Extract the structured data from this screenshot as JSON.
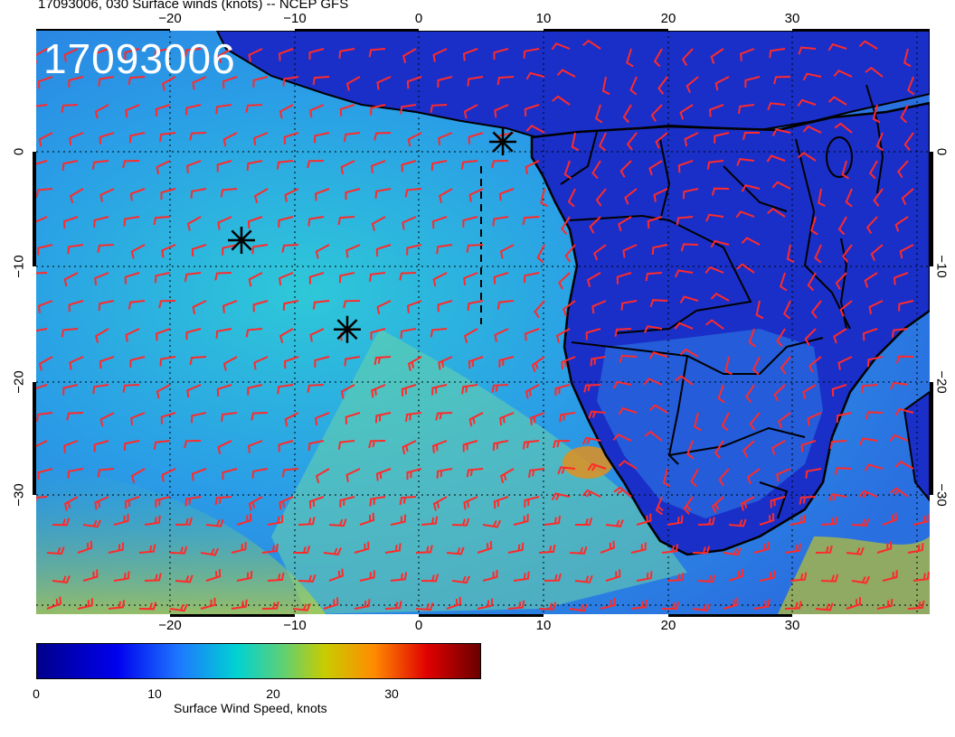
{
  "title": "17093006, 030 Surface winds (knots) -- NCEP GFS",
  "stamp": "17093006",
  "axes": {
    "lon_ticks": [
      "−20",
      "−10",
      "0",
      "10",
      "20",
      "30"
    ],
    "lat_ticks": [
      "0",
      "−10",
      "−20",
      "−30"
    ]
  },
  "colorbar": {
    "label": "Surface Wind Speed, knots",
    "ticks": [
      "0",
      "10",
      "20",
      "30"
    ],
    "colors": [
      "#00008b",
      "#0000ee",
      "#1e78ff",
      "#00d2d2",
      "#5ad07a",
      "#c8cc00",
      "#ff8c00",
      "#e00000",
      "#6a0000"
    ]
  },
  "markers": [
    {
      "name": "storm-marker-1",
      "lon": 6.5,
      "lat": 0.2
    },
    {
      "name": "storm-marker-2",
      "lon": -14.5,
      "lat": -8.3
    },
    {
      "name": "storm-marker-3",
      "lon": -6.0,
      "lat": -16.0
    }
  ],
  "colors": {
    "barb": "#ff2a2a",
    "coast": "#000000",
    "land": "#1a2fc8",
    "ocean": "#2a8fe0"
  }
}
